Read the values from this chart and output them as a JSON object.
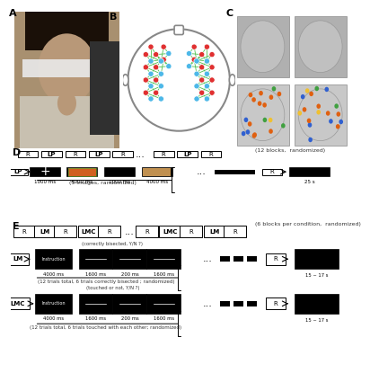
{
  "panel_labels": [
    "A",
    "B",
    "C",
    "D",
    "E"
  ],
  "bg_color": "#ffffff",
  "black": "#000000",
  "gray_light": "#cccccc",
  "dark_gray": "#333333",
  "panel_A_color": "#888888",
  "panel_B_red": "#e03030",
  "panel_B_blue": "#4db8e8",
  "panel_B_green": "#50c050",
  "block_label_D": "D",
  "block_label_E": "E",
  "note_D": "(12 blocks,  randomized)",
  "note_E": "(6 blocks per condition,  randomized)",
  "note_D2": "(5 images, randomized)",
  "note_E1": "(12 trials total, 6 trials correctly bisected ; randomized)",
  "note_E2": "(12 trials total, 6 trials touched with each other; randomized)",
  "times_D": [
    "1000 ms",
    "4000 ms",
    "1000 ms",
    "4000 ms"
  ],
  "times_LM": [
    "4000 ms",
    "1600 ms",
    "200 ms",
    "1600 ms"
  ],
  "times_LMC": [
    "4000 ms",
    "1600 ms",
    "200 ms",
    "1600 ms"
  ],
  "rest_D": "25 s",
  "rest_E": "15 ~ 17 s",
  "annotation_LM": "(correctly bisected, Y/N ?)",
  "annotation_LMC": "(touched or not, Y/N ?)"
}
